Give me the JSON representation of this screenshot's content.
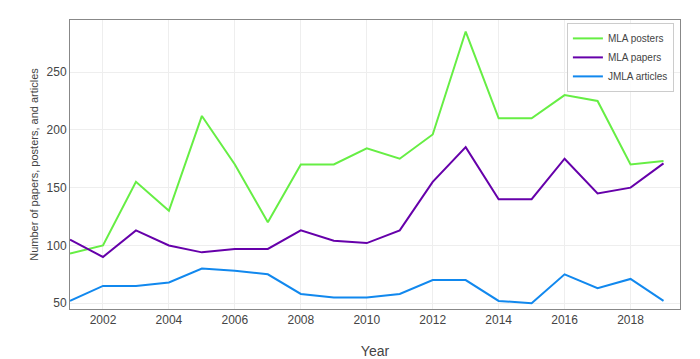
{
  "chart_data": {
    "type": "line",
    "xlabel": "Year",
    "ylabel": "Number of papers, posters, and articles",
    "x": [
      2001,
      2002,
      2003,
      2004,
      2005,
      2006,
      2007,
      2008,
      2009,
      2010,
      2011,
      2012,
      2013,
      2014,
      2015,
      2016,
      2017,
      2018,
      2019
    ],
    "series": [
      {
        "name": "MLA posters",
        "color": "#66ee44",
        "values": [
          93,
          100,
          155,
          130,
          212,
          170,
          120,
          170,
          170,
          184,
          175,
          196,
          285,
          210,
          210,
          230,
          225,
          170,
          173
        ]
      },
      {
        "name": "MLA papers",
        "color": "#6600aa",
        "values": [
          105,
          90,
          113,
          100,
          94,
          97,
          97,
          113,
          104,
          102,
          113,
          155,
          185,
          140,
          140,
          175,
          145,
          150,
          171
        ]
      },
      {
        "name": "JMLA articles",
        "color": "#1188ee",
        "values": [
          52,
          65,
          65,
          68,
          80,
          78,
          75,
          58,
          55,
          55,
          58,
          70,
          70,
          52,
          50,
          75,
          63,
          71,
          52
        ]
      }
    ],
    "xlim": [
      2001,
      2019.5
    ],
    "xticks": [
      2002,
      2004,
      2006,
      2008,
      2010,
      2012,
      2014,
      2016,
      2018
    ],
    "ylim": [
      45,
      295
    ],
    "yticks": [
      50,
      100,
      150,
      200,
      250
    ],
    "grid": true,
    "legend": "upper right"
  }
}
